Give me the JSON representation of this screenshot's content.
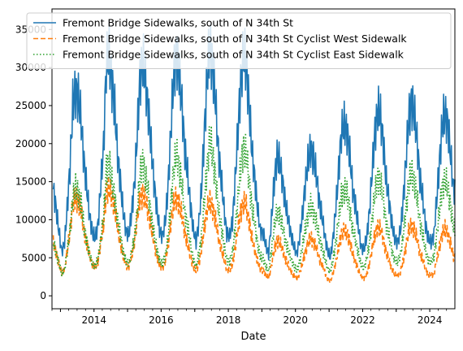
{
  "chart_data": {
    "type": "line",
    "xlabel": "Date",
    "ylabel": "",
    "x_range": [
      "2012-10-01",
      "2024-09-30"
    ],
    "ylim": [
      -1700,
      37700
    ],
    "y_ticks": [
      0,
      5000,
      10000,
      15000,
      20000,
      25000,
      30000,
      35000
    ],
    "x_ticks": [
      "2014",
      "2016",
      "2018",
      "2020",
      "2022",
      "2024"
    ],
    "grid": false,
    "legend_position": "top-left",
    "series": [
      {
        "name": "Fremont Bridge Sidewalks, south of N 34th St",
        "color": "#1f77b4",
        "dash": "solid",
        "sample_step_months": 1,
        "start": "2012-10",
        "values": [
          14000,
          11500,
          8500,
          5800,
          7000,
          11500,
          17000,
          25000,
          27000,
          26000,
          23000,
          17500,
          14000,
          10500,
          8300,
          7600,
          9500,
          14500,
          19500,
          30500,
          31500,
          28000,
          24500,
          18500,
          15000,
          11000,
          8500,
          8000,
          11000,
          14500,
          21000,
          28500,
          31000,
          28000,
          24500,
          19500,
          15000,
          11500,
          8600,
          7800,
          9800,
          14000,
          21500,
          28500,
          32000,
          29000,
          25000,
          19000,
          16000,
          12000,
          8800,
          7000,
          9800,
          14000,
          21500,
          28500,
          33000,
          30000,
          25500,
          19000,
          15500,
          11500,
          8200,
          7800,
          9800,
          15000,
          21500,
          28000,
          31500,
          30500,
          25000,
          19000,
          15500,
          11500,
          8500,
          8300,
          6500,
          5500,
          10000,
          15000,
          18500,
          17500,
          15000,
          12000,
          10000,
          8000,
          6500,
          5500,
          7500,
          10500,
          14500,
          17500,
          19500,
          18000,
          16000,
          12500,
          10500,
          8000,
          6000,
          5000,
          7800,
          11500,
          16500,
          21500,
          22500,
          21500,
          18500,
          14000,
          12000,
          9000,
          6500,
          6000,
          7800,
          11000,
          16500,
          21500,
          24500,
          23500,
          20000,
          15000,
          12500,
          9500,
          7500,
          7000,
          8500,
          12000,
          17500,
          23000,
          25500,
          24000,
          20500,
          15500,
          13000,
          9500,
          7500,
          7000,
          8000,
          12500,
          17500,
          22500,
          24000,
          22500,
          18500,
          14000
        ]
      },
      {
        "name": "Fremont Bridge Sidewalks, south of N 34th St Cyclist West Sidewalk",
        "color": "#ff7f0e",
        "dash": "dashed",
        "sample_step_months": 1,
        "start": "2012-10",
        "values": [
          7000,
          5800,
          4200,
          3000,
          3500,
          5800,
          8500,
          12000,
          12800,
          12500,
          11000,
          8500,
          6800,
          5200,
          4100,
          3700,
          4600,
          7000,
          9300,
          13800,
          14000,
          13000,
          11500,
          8800,
          7000,
          5200,
          4000,
          3800,
          5200,
          7000,
          10000,
          12800,
          13300,
          12500,
          11000,
          9000,
          6900,
          5300,
          4000,
          3600,
          4500,
          6500,
          9500,
          12000,
          13000,
          12000,
          10500,
          8300,
          6700,
          5200,
          3900,
          3200,
          4300,
          6100,
          9000,
          11500,
          12300,
          11500,
          10000,
          7700,
          6200,
          4800,
          3500,
          3300,
          4100,
          6300,
          8800,
          11000,
          12200,
          11800,
          9800,
          7500,
          6000,
          4600,
          3400,
          3400,
          2700,
          2300,
          4000,
          6000,
          7300,
          7000,
          6000,
          4800,
          4000,
          3200,
          2600,
          2200,
          3000,
          4200,
          5700,
          6900,
          7700,
          7100,
          6300,
          4900,
          4100,
          3100,
          2300,
          1900,
          3000,
          4400,
          6400,
          8200,
          8600,
          8200,
          7100,
          5400,
          4600,
          3400,
          2500,
          2300,
          2900,
          4200,
          6200,
          8000,
          9100,
          8700,
          7400,
          5600,
          4700,
          3500,
          2800,
          2600,
          3100,
          4400,
          6400,
          8400,
          9300,
          8700,
          7500,
          5700,
          4800,
          3500,
          2800,
          2600,
          2900,
          4600,
          6400,
          8200,
          8800,
          8200,
          6800,
          5100
        ]
      },
      {
        "name": "Fremont Bridge Sidewalks, south of N 34th St Cyclist East Sidewalk",
        "color": "#2ca02c",
        "dash": "dotted",
        "sample_step_months": 1,
        "start": "2012-10",
        "values": [
          7000,
          5700,
          4300,
          2800,
          3500,
          5700,
          8500,
          13000,
          14200,
          13500,
          12000,
          9000,
          7200,
          5300,
          4200,
          3900,
          4900,
          7500,
          10200,
          16700,
          17500,
          15000,
          13000,
          9700,
          8000,
          5800,
          4500,
          4200,
          5800,
          7500,
          11000,
          15700,
          17700,
          15500,
          13500,
          10500,
          8100,
          6200,
          4600,
          4200,
          5300,
          7500,
          12000,
          16500,
          19000,
          17000,
          14500,
          10700,
          9300,
          6800,
          4900,
          3800,
          5500,
          7900,
          12500,
          17000,
          20700,
          18500,
          15500,
          11300,
          9300,
          6700,
          4700,
          4500,
          5700,
          8700,
          12700,
          17000,
          19300,
          18700,
          15200,
          11500,
          9500,
          6900,
          5100,
          4900,
          3800,
          3200,
          6000,
          9000,
          11200,
          10500,
          9000,
          7200,
          6000,
          4800,
          3900,
          3300,
          4500,
          6300,
          8800,
          10600,
          11800,
          10900,
          9700,
          7600,
          6400,
          4900,
          3700,
          3100,
          4800,
          7100,
          10100,
          13300,
          13900,
          13300,
          11400,
          8600,
          7400,
          5600,
          4000,
          3700,
          4900,
          6800,
          10300,
          13500,
          15400,
          14800,
          12600,
          9400,
          7800,
          6000,
          4700,
          4400,
          5400,
          7600,
          11100,
          14600,
          16200,
          15300,
          13000,
          9800,
          8200,
          6000,
          4700,
          4400,
          5100,
          7900,
          11100,
          14300,
          15200,
          14300,
          11700,
          8900
        ]
      }
    ]
  }
}
